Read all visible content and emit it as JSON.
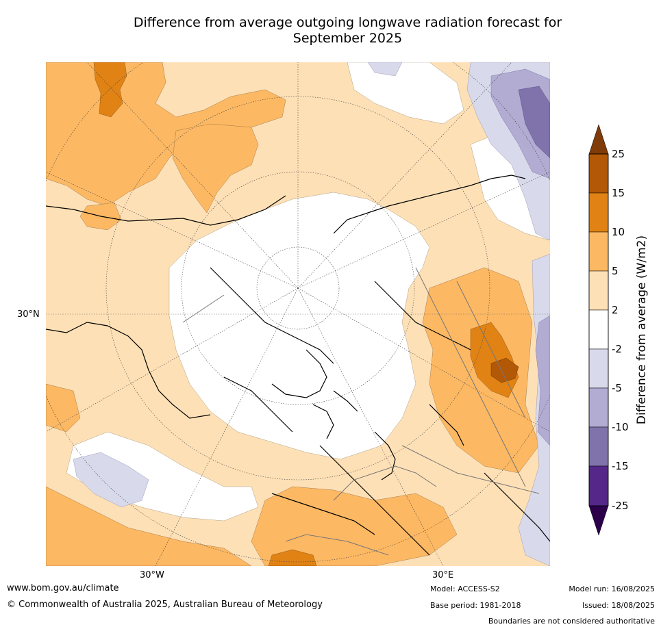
{
  "title": {
    "line1": "Difference from average outgoing longwave radiation forecast for",
    "line2": "September 2025"
  },
  "map": {
    "projection": "north polar stereographic",
    "lat_label": "30°N",
    "lon_labels": [
      "30°W",
      "30°E"
    ]
  },
  "colorbar": {
    "label": "Difference from average (W/m2)",
    "ticks": [
      "25",
      "15",
      "10",
      "5",
      "2",
      "-2",
      "-5",
      "-10",
      "-15",
      "-25"
    ],
    "colors": {
      "above_25": "#7f3b08",
      "15_25": "#b35806",
      "10_15": "#e08214",
      "5_10": "#fdb863",
      "2_5": "#fee0b6",
      "neutral": "#ffffff",
      "m2_m5": "#d8daeb",
      "m5_m10": "#b2abd2",
      "m10_m15": "#8073ac",
      "m15_m25": "#542788",
      "below_m25": "#2d004b"
    }
  },
  "footer": {
    "url": "www.bom.gov.au/climate",
    "copyright": "© Commonwealth of Australia 2025, Australian Bureau of Meteorology",
    "model": "Model: ACCESS-S2",
    "base_period": "Base period: 1981-2018",
    "model_run": "Model run: 16/08/2025",
    "issued": "Issued: 18/08/2025",
    "disclaimer": "Boundaries are not considered authoritative"
  }
}
